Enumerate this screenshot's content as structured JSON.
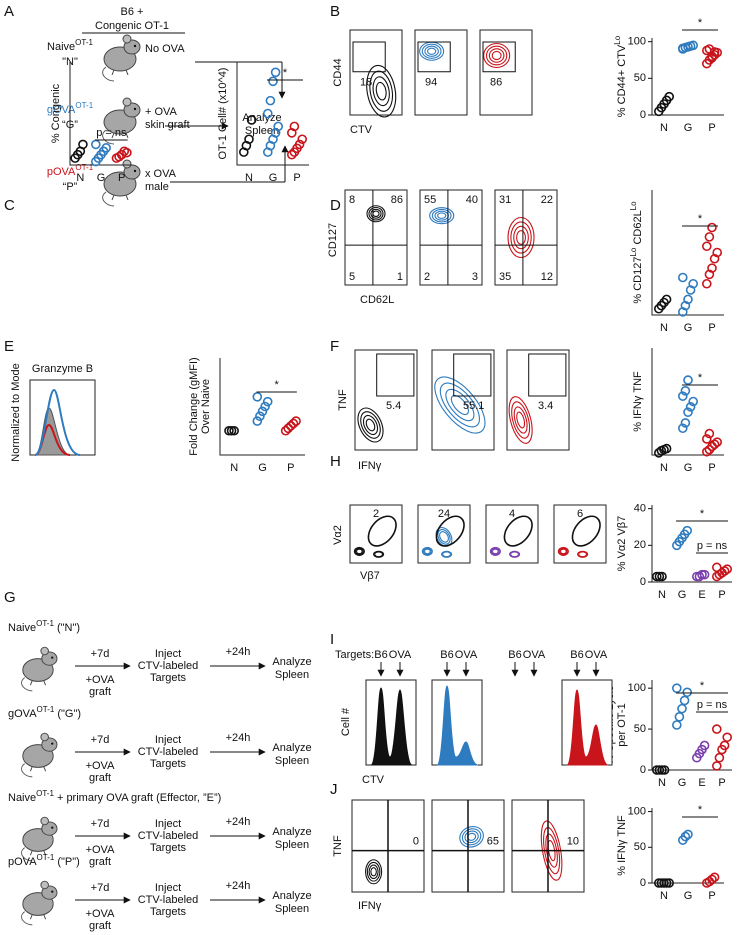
{
  "A": {
    "label": "A",
    "header": [
      "B6 +",
      "Congenic OT-1"
    ],
    "groups": [
      {
        "name": "Naive",
        "sup": "OT-1",
        "code": "\"N\"",
        "treatment": [
          "No OVA"
        ],
        "color": "#111111"
      },
      {
        "name": "gOVA",
        "sup": "OT-1",
        "code": "“G”",
        "treatment": [
          "+ OVA",
          "skin graft"
        ],
        "color": "#2e7bbf"
      },
      {
        "name": "pOVA",
        "sup": "OT-1",
        "code": "“P”",
        "treatment": [
          "x OVA",
          "male"
        ],
        "color": "#c8141b"
      }
    ],
    "outcome": [
      "Analyze",
      "Spleen"
    ]
  },
  "B": {
    "label": "B",
    "flow": {
      "ylabel": "CD44",
      "xlabel": "CTV",
      "gates": [
        "18",
        "94",
        "86"
      ],
      "colors": [
        "#111111",
        "#2e7bbf",
        "#c8141b"
      ]
    },
    "dots": {
      "ylabel": [
        "% CD44+ CTV",
        {
          "sup": "Lo"
        }
      ],
      "ylim": [
        0,
        105
      ],
      "yticks": [
        0,
        50,
        100
      ],
      "marks": [
        "*"
      ],
      "groups": [
        {
          "name": "N",
          "color": "#111111",
          "values": [
            5,
            10,
            15,
            20,
            25
          ]
        },
        {
          "name": "G",
          "color": "#2e7bbf",
          "values": [
            90,
            92,
            93,
            94,
            95,
            91
          ]
        },
        {
          "name": "P",
          "color": "#c8141b",
          "values": [
            70,
            75,
            78,
            82,
            85,
            88,
            90,
            80,
            86
          ]
        }
      ]
    }
  },
  "C": {
    "label": "C",
    "dots": [
      {
        "ylabel": [
          "% Congenic"
        ],
        "ylim": [
          0,
          1.5
        ],
        "marks": [
          "p = ns"
        ],
        "groups": [
          {
            "name": "N",
            "color": "#111111",
            "values": [
              0.1,
              0.15,
              0.2,
              0.3
            ]
          },
          {
            "name": "G",
            "color": "#2e7bbf",
            "values": [
              0.05,
              0.1,
              0.15,
              0.2,
              0.25,
              0.3
            ]
          },
          {
            "name": "P",
            "color": "#c8141b",
            "values": [
              0.1,
              0.12,
              0.15,
              0.2,
              0.18
            ]
          }
        ]
      },
      {
        "ylabel": [
          "OT-1 Cell# (x10^4)"
        ],
        "ylim": [
          0,
          8
        ],
        "marks": [
          "*"
        ],
        "groups": [
          {
            "name": "N",
            "color": "#111111",
            "values": [
              1,
              1.5,
              2,
              3.5
            ]
          },
          {
            "name": "G",
            "color": "#2e7bbf",
            "values": [
              1,
              1.5,
              2,
              2.5,
              3,
              4,
              5,
              6.5,
              7.2
            ]
          },
          {
            "name": "P",
            "color": "#c8141b",
            "values": [
              0.8,
              1,
              1.3,
              1.6,
              2,
              2.5,
              3
            ]
          }
        ]
      }
    ]
  },
  "D": {
    "label": "D",
    "flow": {
      "ylabel": "CD127",
      "xlabel": "CD62L",
      "quadrants": [
        [
          "8",
          "86",
          "5",
          "1"
        ],
        [
          "55",
          "40",
          "2",
          "3"
        ],
        [
          "31",
          "22",
          "35",
          "12"
        ]
      ],
      "colors": [
        "#111111",
        "#2e7bbf",
        "#c8141b"
      ]
    },
    "dots": {
      "ylabel": [
        "% CD127",
        {
          "sup": "Lo"
        },
        " CD62L",
        {
          "sup": "Lo"
        }
      ],
      "ylim": [
        0,
        40
      ],
      "marks": [
        "*"
      ],
      "groups": [
        {
          "name": "N",
          "color": "#111111",
          "values": [
            2,
            3,
            4,
            5
          ]
        },
        {
          "name": "G",
          "color": "#2e7bbf",
          "values": [
            1,
            3,
            5,
            8,
            10,
            12
          ]
        },
        {
          "name": "P",
          "color": "#c8141b",
          "values": [
            10,
            13,
            15,
            18,
            20,
            22,
            25,
            28
          ]
        }
      ]
    }
  },
  "E": {
    "label": "E",
    "hist": {
      "title": "Granzyme B",
      "ylabel": "Normalized to Mode",
      "colors": [
        "#9a9a9a",
        "#c8141b",
        "#2e7bbf"
      ]
    },
    "dots": {
      "ylabel": [
        "Fold Change (gMFI)",
        "Over Naive"
      ],
      "ylim": [
        0.5,
        2.5
      ],
      "marks": [
        "*"
      ],
      "groups": [
        {
          "name": "N",
          "color": "#111111",
          "values": [
            1,
            1,
            1
          ]
        },
        {
          "name": "G",
          "color": "#2e7bbf",
          "values": [
            1.2,
            1.3,
            1.4,
            1.5,
            1.6,
            1.7
          ]
        },
        {
          "name": "P",
          "color": "#c8141b",
          "values": [
            1,
            1.05,
            1.1,
            1.15,
            1.2
          ]
        }
      ]
    }
  },
  "F": {
    "label": "F",
    "flow": {
      "ylabel": "TNF",
      "xlabel": "IFNγ",
      "gates": [
        "5.4",
        "55.1",
        "3.4"
      ],
      "colors": [
        "#111111",
        "#2e7bbf",
        "#c8141b"
      ]
    },
    "dots": {
      "ylabel": [
        "% IFNγ TNF"
      ],
      "ylim": [
        0,
        100
      ],
      "marks": [
        "*"
      ],
      "groups": [
        {
          "name": "N",
          "color": "#111111",
          "values": [
            2,
            4,
            5,
            6
          ]
        },
        {
          "name": "G",
          "color": "#2e7bbf",
          "values": [
            25,
            30,
            40,
            45,
            50,
            55,
            60,
            70
          ]
        },
        {
          "name": "P",
          "color": "#c8141b",
          "values": [
            3,
            5,
            8,
            10,
            12,
            15,
            20
          ]
        }
      ]
    }
  },
  "G": {
    "label": "G",
    "protocols": [
      {
        "title": [
          "Naive",
          {
            "sup": "OT-1"
          },
          " (\"N\")"
        ],
        "color": "#111111"
      },
      {
        "title": [
          "gOVA",
          {
            "sup": "OT-1"
          },
          " (\"G\")"
        ],
        "color": "#2e7bbf"
      },
      {
        "title": [
          "Naive",
          {
            "sup": "OT-1"
          },
          " + primary OVA graft (Effector, ”E”)"
        ],
        "color": "#7b3fae"
      },
      {
        "title": [
          "pOVA",
          {
            "sup": "OT-1"
          },
          " (\"P\")"
        ],
        "color": "#c8141b"
      }
    ],
    "steps": {
      "first": "+7d",
      "graft": [
        "+OVA",
        "graft"
      ],
      "inject": [
        "Inject",
        "CTV-labeled",
        "Targets"
      ],
      "second": "+24h",
      "outcome": [
        "Analyze",
        "Spleen"
      ]
    }
  },
  "H": {
    "label": "H",
    "flow": {
      "ylabel": "Vα2",
      "xlabel": "Vβ7",
      "gates": [
        "2",
        "24",
        "4",
        "6"
      ],
      "colors": [
        "#111111",
        "#2e7bbf",
        "#7b3fae",
        "#c8141b"
      ]
    },
    "dots": {
      "ylabel": [
        "% Vα2 Vβ7"
      ],
      "ylim": [
        0,
        42
      ],
      "yticks": [
        0,
        20,
        40
      ],
      "marks": [
        "*",
        "p = ns"
      ],
      "groups": [
        {
          "name": "N",
          "color": "#111111",
          "values": [
            3,
            3,
            3
          ]
        },
        {
          "name": "G",
          "color": "#2e7bbf",
          "values": [
            20,
            22,
            24,
            26,
            28
          ]
        },
        {
          "name": "E",
          "color": "#7b3fae",
          "values": [
            3,
            3,
            4,
            4
          ]
        },
        {
          "name": "P",
          "color": "#c8141b",
          "values": [
            3,
            4,
            5,
            6,
            7,
            8
          ]
        }
      ]
    }
  },
  "I": {
    "label": "I",
    "hist": {
      "targets_label": "Targets:",
      "targets": [
        [
          "B6",
          "OVA"
        ],
        [
          "B6",
          "OVA"
        ],
        [
          "B6",
          "OVA"
        ],
        [
          "B6",
          "OVA"
        ]
      ],
      "ylabel": "Cell #",
      "xlabel": "CTV",
      "colors": [
        "#111111",
        "#2e7bbf",
        "#c8141b"
      ]
    },
    "dots": {
      "ylabel": [
        "% Specific Lysis",
        "per OT-1"
      ],
      "ylim": [
        0,
        110
      ],
      "yticks": [
        0,
        50,
        100
      ],
      "marks": [
        "*",
        "p = ns"
      ],
      "groups": [
        {
          "name": "N",
          "color": "#111111",
          "values": [
            0,
            0,
            0,
            0
          ]
        },
        {
          "name": "G",
          "color": "#2e7bbf",
          "values": [
            55,
            65,
            75,
            85,
            95,
            100
          ]
        },
        {
          "name": "E",
          "color": "#7b3fae",
          "values": [
            15,
            20,
            25,
            30
          ]
        },
        {
          "name": "P",
          "color": "#c8141b",
          "values": [
            5,
            15,
            25,
            30,
            40,
            50
          ]
        }
      ]
    }
  },
  "J": {
    "label": "J",
    "flow": {
      "ylabel": "TNF",
      "xlabel": "IFNγ",
      "gates": [
        "0",
        "65",
        "10"
      ],
      "colors": [
        "#111111",
        "#2e7bbf",
        "#c8141b"
      ]
    },
    "dots": {
      "ylabel": [
        "% IFNγ TNF"
      ],
      "ylim": [
        0,
        105
      ],
      "yticks": [
        0,
        50,
        100
      ],
      "marks": [
        "*"
      ],
      "groups": [
        {
          "name": "N",
          "color": "#111111",
          "values": [
            0,
            0,
            0,
            0,
            0
          ]
        },
        {
          "name": "G",
          "color": "#2e7bbf",
          "values": [
            60,
            65,
            68
          ]
        },
        {
          "name": "P",
          "color": "#c8141b",
          "values": [
            0,
            2,
            5,
            8
          ]
        }
      ]
    }
  }
}
